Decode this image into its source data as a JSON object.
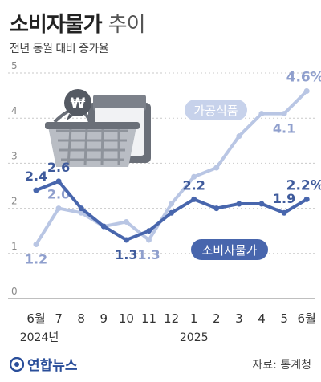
{
  "header": {
    "title_main": "소비자물가",
    "title_sub": "추이",
    "subtitle": "전년 동월 대비 증가율"
  },
  "footer": {
    "logo_text": "연합뉴스",
    "source": "자료: 통계청"
  },
  "colors": {
    "food_line": "#b9c6e4",
    "cpi_line": "#4866ad",
    "food_label_bg": "#c7d2eb",
    "cpi_label_bg": "#4866ad",
    "value_dark": "#3f5b9c",
    "value_light": "#8f9fcd"
  },
  "chart_data": {
    "type": "line",
    "title": "소비자물가 추이",
    "subtitle": "전년 동월 대비 증가율",
    "x_labels": [
      "6월",
      "7",
      "8",
      "9",
      "10",
      "11",
      "12",
      "1",
      "2",
      "3",
      "4",
      "5",
      "6월"
    ],
    "year_labels": [
      {
        "label": "2024년",
        "index": 0
      },
      {
        "label": "2025",
        "index": 7
      }
    ],
    "y_ticks": [
      "0",
      "1",
      "2",
      "3",
      "4",
      "5"
    ],
    "ylim": [
      0,
      5
    ],
    "series": [
      {
        "name": "가공식품",
        "values": [
          1.2,
          2.0,
          1.9,
          1.6,
          1.7,
          1.3,
          2.1,
          2.7,
          2.9,
          3.6,
          4.1,
          4.1,
          4.6
        ],
        "labeled": [
          {
            "index": 0,
            "text": "1.2"
          },
          {
            "index": 1,
            "text": "2.0"
          },
          {
            "index": 5,
            "text": "1.3"
          },
          {
            "index": 11,
            "text": "4.1"
          },
          {
            "index": 12,
            "text": "4.6%"
          }
        ]
      },
      {
        "name": "소비자물가",
        "values": [
          2.4,
          2.6,
          2.0,
          1.6,
          1.3,
          1.5,
          1.9,
          2.2,
          2.0,
          2.1,
          2.1,
          1.9,
          2.2
        ],
        "labeled": [
          {
            "index": 0,
            "text": "2.4"
          },
          {
            "index": 1,
            "text": "2.6"
          },
          {
            "index": 4,
            "text": "1.3"
          },
          {
            "index": 7,
            "text": "2.2"
          },
          {
            "index": 11,
            "text": "1.9"
          },
          {
            "index": 12,
            "text": "2.2%"
          }
        ]
      }
    ]
  }
}
